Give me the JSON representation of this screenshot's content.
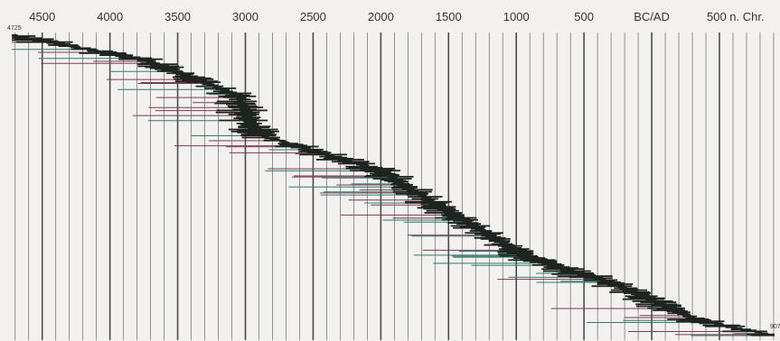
{
  "chart_data": {
    "type": "timeline-range",
    "title": "",
    "xlabel": "",
    "ylabel": "",
    "x_axis": {
      "direction": "decreasing-left-to-right",
      "xlim": [
        -4725,
        907
      ],
      "ticks": [
        {
          "value": -4500,
          "label": "4500"
        },
        {
          "value": -4000,
          "label": "4000"
        },
        {
          "value": -3500,
          "label": "3500"
        },
        {
          "value": -3000,
          "label": "3000"
        },
        {
          "value": -2500,
          "label": "2500"
        },
        {
          "value": -2000,
          "label": "2000"
        },
        {
          "value": -1500,
          "label": "1500"
        },
        {
          "value": -1000,
          "label": "1000"
        },
        {
          "value": -500,
          "label": "500"
        },
        {
          "value": 0,
          "label": "BC/AD"
        },
        {
          "value": 500,
          "label": "500 n. Chr."
        }
      ],
      "minor_step": 100
    },
    "end_labels": {
      "start": "4725",
      "end": "907"
    },
    "grid": true,
    "legend": "none",
    "colors": {
      "bar": "#1f2421",
      "range_line_a": "#2f7a6c",
      "range_line_b": "#7a3a55",
      "gridline": "#3a3a3a"
    },
    "series": [
      {
        "segments": [
          {
            "y0": 0,
            "y1": 0.08,
            "start": -4725,
            "end": -3750
          },
          {
            "y0": 0.08,
            "y1": 0.2,
            "start": -3750,
            "end": -3050
          },
          {
            "y0": 0.2,
            "y1": 0.33,
            "start": -3050,
            "end": -2900
          },
          {
            "y0": 0.33,
            "y1": 0.45,
            "start": -2900,
            "end": -2000
          },
          {
            "y0": 0.45,
            "y1": 0.56,
            "start": -2000,
            "end": -1600
          },
          {
            "y0": 0.56,
            "y1": 0.74,
            "start": -1600,
            "end": -900
          },
          {
            "y0": 0.74,
            "y1": 0.83,
            "start": -900,
            "end": -250
          },
          {
            "y0": 0.83,
            "y1": 0.95,
            "start": -250,
            "end": 350
          },
          {
            "y0": 0.95,
            "y1": 1.0,
            "start": 350,
            "end": 907
          }
        ]
      }
    ]
  }
}
